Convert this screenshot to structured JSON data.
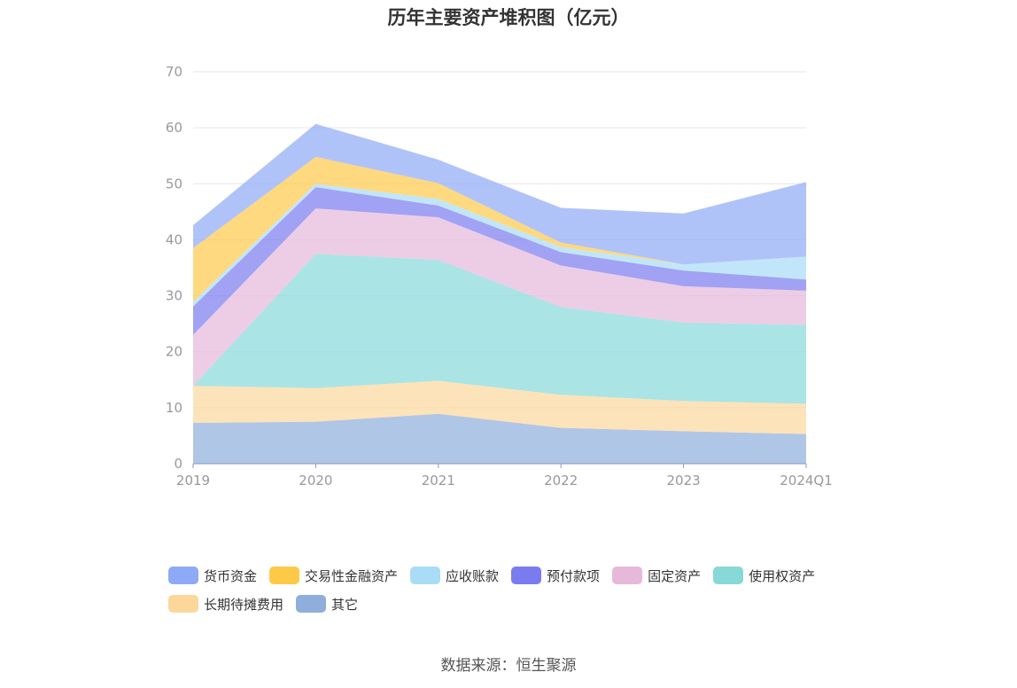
{
  "title": "历年主要资产堆积图（亿元）",
  "source": "数据来源：恒生聚源",
  "chart_data": {
    "type": "area",
    "stacked": true,
    "categories": [
      "2019",
      "2020",
      "2021",
      "2022",
      "2023",
      "2024Q1"
    ],
    "ylim": [
      0,
      70
    ],
    "yticks": [
      0,
      10,
      20,
      30,
      40,
      50,
      60,
      70
    ],
    "grid": true,
    "legend_position": "bottom",
    "series": [
      {
        "name": "其它",
        "color": "#8faedb",
        "values": [
          7.3,
          7.5,
          8.9,
          6.4,
          5.8,
          5.3
        ]
      },
      {
        "name": "长期待摊费用",
        "color": "#fcd79b",
        "values": [
          6.6,
          6.0,
          5.9,
          5.9,
          5.4,
          5.4
        ]
      },
      {
        "name": "使用权资产",
        "color": "#88d8d8",
        "values": [
          0.0,
          24.0,
          21.6,
          15.7,
          14.0,
          14.1
        ]
      },
      {
        "name": "固定资产",
        "color": "#e6b8da",
        "values": [
          9.1,
          8.1,
          7.6,
          7.4,
          6.5,
          6.1
        ]
      },
      {
        "name": "预付款项",
        "color": "#7b7bf0",
        "values": [
          5.1,
          3.8,
          2.1,
          2.4,
          2.8,
          2.0
        ]
      },
      {
        "name": "应收账款",
        "color": "#a8dcf7",
        "values": [
          0.8,
          0.6,
          1.2,
          0.9,
          1.1,
          4.1
        ]
      },
      {
        "name": "交易性金融资产",
        "color": "#fdc948",
        "values": [
          9.6,
          4.8,
          2.8,
          0.8,
          0.0,
          0.0
        ]
      },
      {
        "name": "货币资金",
        "color": "#8eaaf7",
        "values": [
          4.1,
          5.9,
          4.2,
          6.2,
          9.1,
          13.3
        ]
      }
    ]
  },
  "legend_order": [
    7,
    6,
    5,
    4,
    3,
    2,
    1,
    0
  ]
}
